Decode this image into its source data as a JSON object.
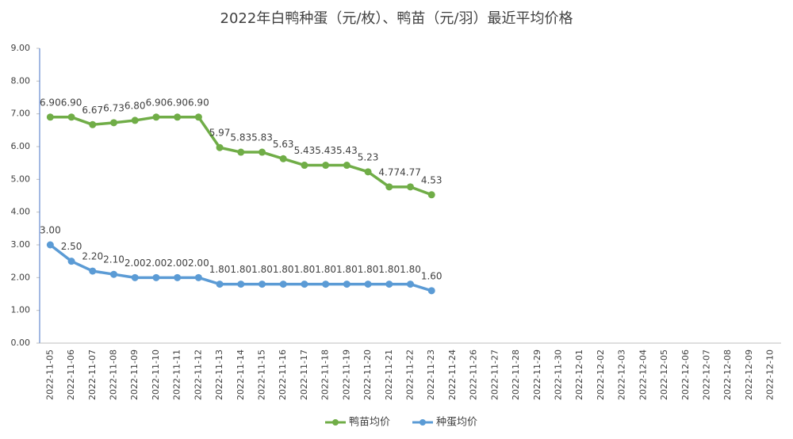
{
  "chart_data": {
    "type": "line",
    "title": "2022年白鸭种蛋（元/枚）、鸭苗（元/羽）最近平均价格",
    "categories": [
      "2022-11-05",
      "2022-11-06",
      "2022-11-07",
      "2022-11-08",
      "2022-11-09",
      "2022-11-10",
      "2022-11-11",
      "2022-11-12",
      "2022-11-13",
      "2022-11-14",
      "2022-11-15",
      "2022-11-16",
      "2022-11-17",
      "2022-11-18",
      "2022-11-19",
      "2022-11-20",
      "2022-11-21",
      "2022-11-22",
      "2022-11-23",
      "2022-11-24",
      "2022-11-26",
      "2022-11-27",
      "2022-11-28",
      "2022-11-29",
      "2022-11-30",
      "2022-12-01",
      "2022-12-02",
      "2022-12-03",
      "2022-12-04",
      "2022-12-05",
      "2022-12-06",
      "2022-12-07",
      "2022-12-08",
      "2022-12-09",
      "2022-12-10"
    ],
    "series": [
      {
        "name": "鸭苗均价",
        "color": "#70ad47",
        "values": [
          6.9,
          6.9,
          6.67,
          6.73,
          6.8,
          6.9,
          6.9,
          6.9,
          5.97,
          5.83,
          5.83,
          5.63,
          5.43,
          5.43,
          5.43,
          5.23,
          4.77,
          4.77,
          4.53,
          null,
          null,
          null,
          null,
          null,
          null,
          null,
          null,
          null,
          null,
          null,
          null,
          null,
          null,
          null,
          null
        ],
        "value_labels": [
          "6.90",
          "6.90",
          "6.67",
          "6.73",
          "6.80",
          "6.90",
          "6.90",
          "6.90",
          "5.97",
          "5.83",
          "5.83",
          "5.63",
          "5.43",
          "5.43",
          "5.43",
          "5.23",
          "4.77",
          "4.77",
          "4.53",
          null,
          null,
          null,
          null,
          null,
          null,
          null,
          null,
          null,
          null,
          null,
          null,
          null,
          null,
          null,
          null
        ]
      },
      {
        "name": "种蛋均价",
        "color": "#5b9bd5",
        "values": [
          3.0,
          2.5,
          2.2,
          2.1,
          2.0,
          2.0,
          2.0,
          2.0,
          1.8,
          1.8,
          1.8,
          1.8,
          1.8,
          1.8,
          1.8,
          1.8,
          1.8,
          1.8,
          1.6,
          null,
          null,
          null,
          null,
          null,
          null,
          null,
          null,
          null,
          null,
          null,
          null,
          null,
          null,
          null,
          null
        ],
        "value_labels": [
          "3.00",
          "2.50",
          "2.20",
          "2.10",
          "2.00",
          "2.00",
          "2.00",
          "2.00",
          "1.80",
          "1.80",
          "1.80",
          "1.80",
          "1.80",
          "1.80",
          "1.80",
          "1.80",
          "1.80",
          "1.80",
          "1.60",
          null,
          null,
          null,
          null,
          null,
          null,
          null,
          null,
          null,
          null,
          null,
          null,
          null,
          null,
          null,
          null
        ]
      }
    ],
    "ylim": [
      0,
      9
    ],
    "yticks": [
      {
        "value": 0,
        "label": "0.00"
      },
      {
        "value": 1,
        "label": "1.00"
      },
      {
        "value": 2,
        "label": "2.00"
      },
      {
        "value": 3,
        "label": "3.00"
      },
      {
        "value": 4,
        "label": "4.00"
      },
      {
        "value": 5,
        "label": "5.00"
      },
      {
        "value": 6,
        "label": "6.00"
      },
      {
        "value": 7,
        "label": "7.00"
      },
      {
        "value": 8,
        "label": "8.00"
      },
      {
        "value": 9,
        "label": "9.00"
      }
    ],
    "grid": false,
    "legend": "bottom"
  }
}
